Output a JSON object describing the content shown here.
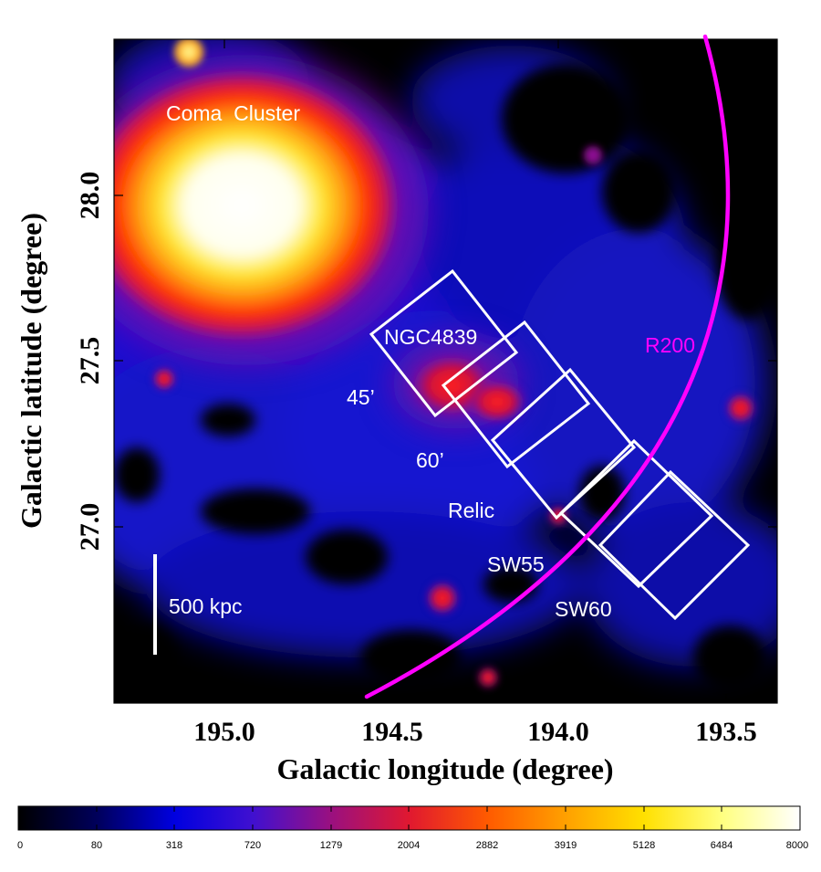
{
  "x_axis": {
    "title": "Galactic longitude (degree)",
    "ticks": [
      "195.0",
      "194.5",
      "194.0",
      "193.5"
    ]
  },
  "y_axis": {
    "title": "Galactic latitude (degree)",
    "ticks": [
      "28.0",
      "27.5",
      "27.0"
    ]
  },
  "annotations": {
    "cluster": "Coma  Cluster",
    "galaxy": "NGC4839",
    "field_45": "45’",
    "field_60": "60’",
    "relic": "Relic",
    "sw55": "SW55",
    "sw60": "SW60",
    "r200": "R200",
    "scale_bar": "500 kpc"
  },
  "colorbar": {
    "ticks": [
      "0",
      "80",
      "318",
      "720",
      "1279",
      "2004",
      "2882",
      "3919",
      "5128",
      "6484",
      "8000"
    ]
  },
  "colors": {
    "r200_arc": "#ff00ff",
    "field_boxes": "#ffffff",
    "background": "#000000"
  }
}
